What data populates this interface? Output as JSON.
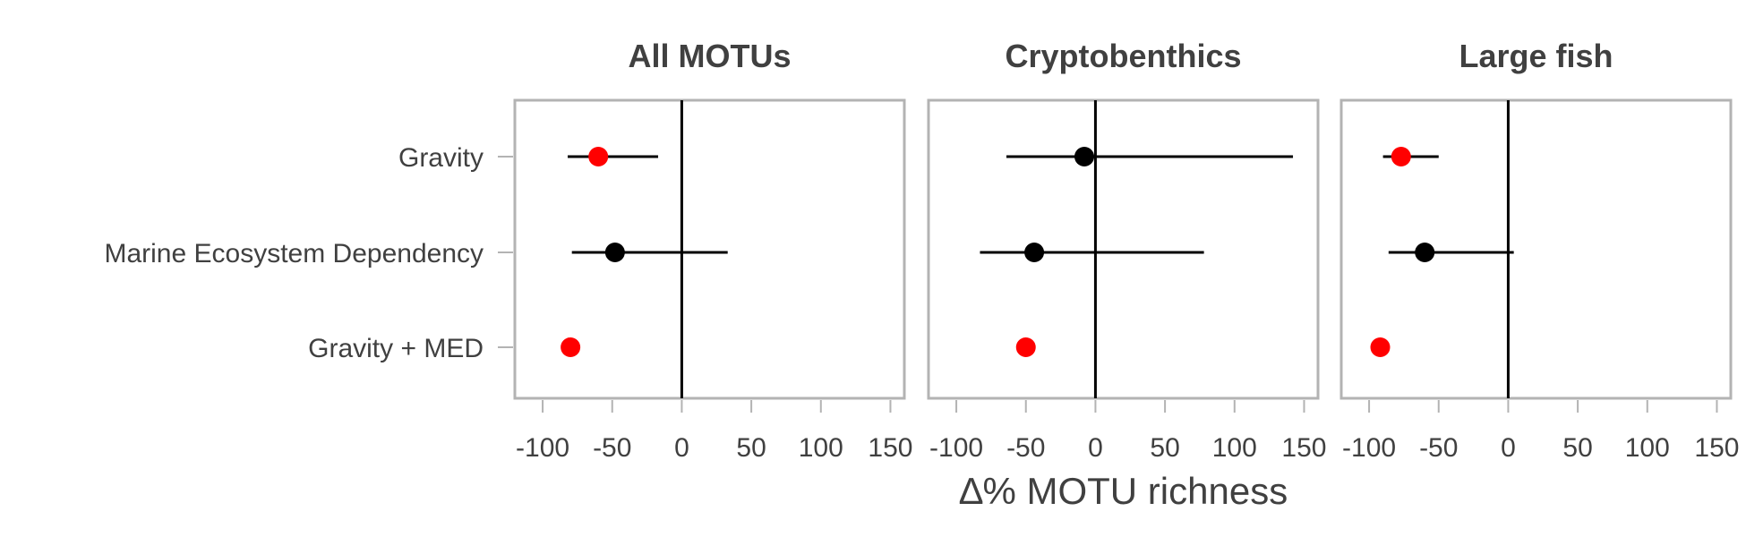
{
  "chart_data": {
    "type": "scatter",
    "subtype": "forest-plot",
    "xlabel": "∆% MOTU richness",
    "xlim": [
      -120,
      160
    ],
    "x_ticks": [
      -100,
      -50,
      0,
      50,
      100,
      150
    ],
    "x_tick_labels": [
      "-100",
      "-50",
      "0",
      "50",
      "100",
      "150"
    ],
    "reference_line_x": 0,
    "grid": false,
    "categories": [
      "Gravity",
      "Marine Ecosystem Dependency",
      "Gravity + MED"
    ],
    "colors": {
      "significant": "#ff0000",
      "not_significant": "#000000",
      "frame": "#b3b3b3",
      "text": "#404040"
    },
    "panels": [
      {
        "title": "All MOTUs",
        "points": [
          {
            "category": "Gravity",
            "x": -60,
            "lower": -82,
            "upper": -17,
            "significant": true
          },
          {
            "category": "Marine Ecosystem Dependency",
            "x": -48,
            "lower": -79,
            "upper": 33,
            "significant": false
          },
          {
            "category": "Gravity + MED",
            "x": -80,
            "lower": -80,
            "upper": -80,
            "significant": true
          }
        ]
      },
      {
        "title": "Cryptobenthics",
        "points": [
          {
            "category": "Gravity",
            "x": -8,
            "lower": -64,
            "upper": 142,
            "significant": false
          },
          {
            "category": "Marine Ecosystem Dependency",
            "x": -44,
            "lower": -83,
            "upper": 78,
            "significant": false
          },
          {
            "category": "Gravity + MED",
            "x": -50,
            "lower": -50,
            "upper": -50,
            "significant": true
          }
        ]
      },
      {
        "title": "Large fish",
        "points": [
          {
            "category": "Gravity",
            "x": -77,
            "lower": -90,
            "upper": -50,
            "significant": true
          },
          {
            "category": "Marine Ecosystem Dependency",
            "x": -60,
            "lower": -86,
            "upper": 4,
            "significant": false
          },
          {
            "category": "Gravity + MED",
            "x": -92,
            "lower": -92,
            "upper": -92,
            "significant": true
          }
        ]
      }
    ]
  }
}
